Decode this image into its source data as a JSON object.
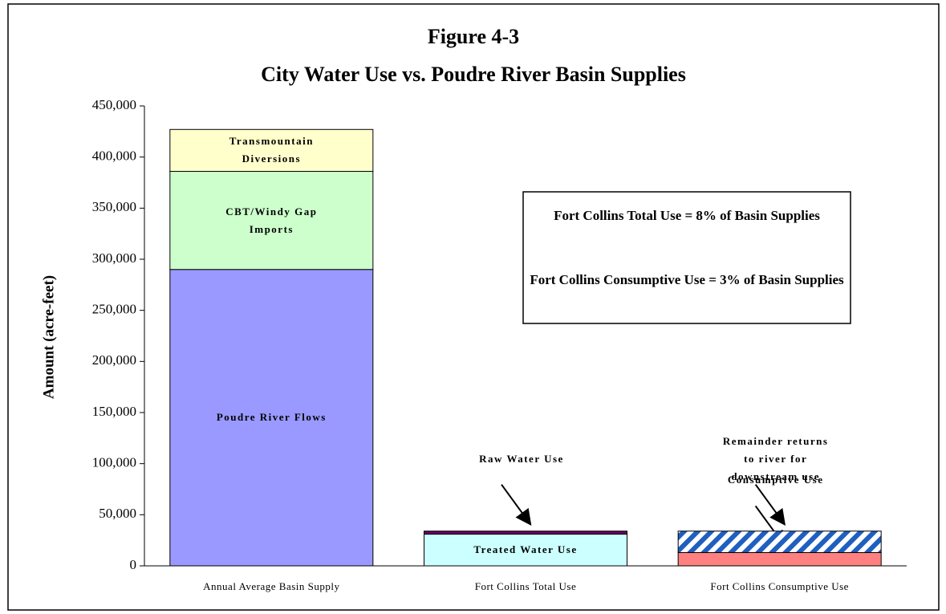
{
  "chart_data": {
    "type": "stacked_bar",
    "title": "Figure 4-3",
    "subtitle": "City Water Use vs. Poudre River Basin Supplies",
    "y_label": "Amount (acre-feet)",
    "categories": [
      "Annual Average Basin Supply",
      "Fort Collins Total Use",
      "Fort Collins Consumptive Use"
    ],
    "series": [
      {
        "name": "Poudre River Flows",
        "color": "#9999ff",
        "values": [
          290000,
          null,
          null
        ]
      },
      {
        "name": "CBT/Windy Gap Imports",
        "color": "#ccffcc",
        "values": [
          96000,
          null,
          null
        ]
      },
      {
        "name": "Transmountain Diversions",
        "color": "#ffffcc",
        "values": [
          41000,
          null,
          null
        ]
      },
      {
        "name": "Treated Water Use",
        "color": "#ccffff",
        "values": [
          null,
          31000,
          null
        ]
      },
      {
        "name": "Raw Water Use",
        "color": "#660066",
        "values": [
          null,
          3000,
          null
        ]
      },
      {
        "name": "Consumptive Use",
        "color": "#ff8080",
        "values": [
          null,
          null,
          13000
        ]
      },
      {
        "name": "Remainder returns to river for downstream use",
        "color": "#1f5fbf",
        "hatch": true,
        "values": [
          null,
          null,
          21000
        ]
      }
    ],
    "ylim": [
      0,
      450000
    ],
    "yticks": [
      0,
      {
        "value": 50000,
        "label": "50,000"
      },
      {
        "value": 100000,
        "label": "100,000"
      },
      {
        "value": 150000,
        "label": "150,000"
      },
      {
        "value": 200000,
        "label": "200,000"
      },
      {
        "value": 250000,
        "label": "250,000"
      },
      {
        "value": 300000,
        "label": "300,000"
      },
      {
        "value": 350000,
        "label": "350,000"
      },
      {
        "value": 400000,
        "label": "400,000"
      },
      {
        "value": 450000,
        "label": "450,000"
      }
    ],
    "annotations": [
      "Fort Collins Total Use = 8% of Basin Supplies",
      "Fort Collins Consumptive Use = 3% of Basin Supplies"
    ]
  }
}
